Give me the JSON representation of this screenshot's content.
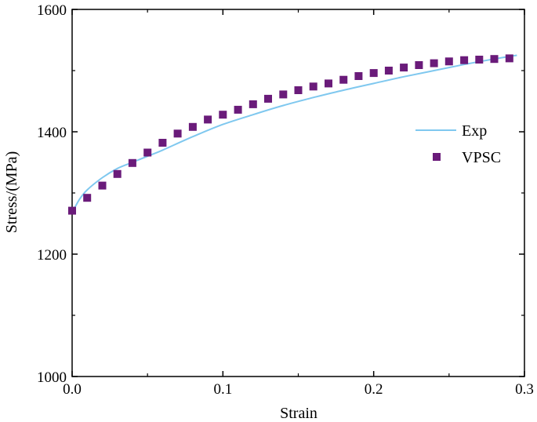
{
  "chart_data": {
    "type": "scatter",
    "title": "",
    "xlabel": "Strain",
    "ylabel": "Stress/(MPa)",
    "xlim": [
      0.0,
      0.3
    ],
    "ylim": [
      1000,
      1600
    ],
    "x_ticks": [
      0.0,
      0.1,
      0.2,
      0.3
    ],
    "x_tick_labels": [
      "0.0",
      "0.1",
      "0.2",
      "0.3"
    ],
    "y_ticks": [
      1000,
      1200,
      1400,
      1600
    ],
    "y_tick_labels": [
      "1000",
      "1200",
      "1400",
      "1600"
    ],
    "grid": false,
    "legend_position": "right",
    "series": [
      {
        "name": "Exp",
        "type": "line",
        "color": "#7fc8ef",
        "x": [
          0.0,
          0.005,
          0.01,
          0.02,
          0.03,
          0.04,
          0.05,
          0.06,
          0.08,
          0.1,
          0.12,
          0.14,
          0.16,
          0.18,
          0.2,
          0.22,
          0.24,
          0.26,
          0.28,
          0.295
        ],
        "y": [
          1268,
          1290,
          1305,
          1325,
          1340,
          1350,
          1360,
          1370,
          1392,
          1412,
          1428,
          1443,
          1456,
          1468,
          1479,
          1490,
          1500,
          1510,
          1519,
          1525
        ]
      },
      {
        "name": "VPSC",
        "type": "scatter",
        "color": "#6a1b7a",
        "x": [
          0.0,
          0.01,
          0.02,
          0.03,
          0.04,
          0.05,
          0.06,
          0.07,
          0.08,
          0.09,
          0.1,
          0.11,
          0.12,
          0.13,
          0.14,
          0.15,
          0.16,
          0.17,
          0.18,
          0.19,
          0.2,
          0.21,
          0.22,
          0.23,
          0.24,
          0.25,
          0.26,
          0.27,
          0.28,
          0.29
        ],
        "y": [
          1271,
          1292,
          1312,
          1331,
          1349,
          1366,
          1382,
          1397,
          1408,
          1420,
          1428,
          1436,
          1445,
          1454,
          1461,
          1468,
          1474,
          1479,
          1485,
          1491,
          1496,
          1500,
          1505,
          1509,
          1512,
          1515,
          1517,
          1518,
          1519,
          1520
        ]
      }
    ]
  }
}
